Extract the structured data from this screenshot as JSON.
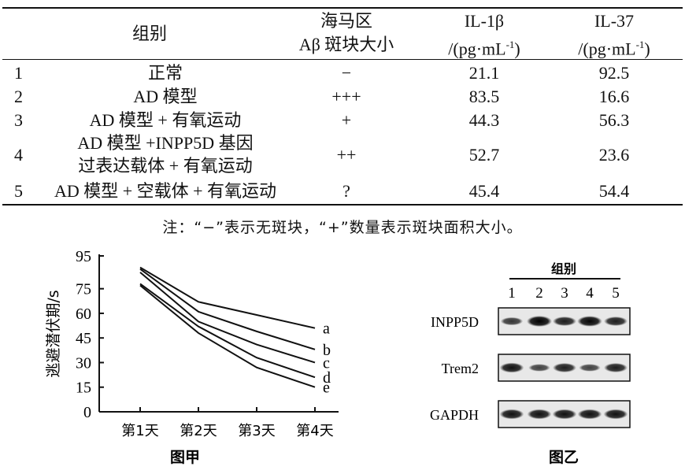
{
  "table": {
    "headers": {
      "group": "组别",
      "plaque_line1": "海马区",
      "plaque_line2": "Aβ 斑块大小",
      "il1b_line1": "IL-1β",
      "il1b_line2": "/(pg·mL",
      "il1b_exp": "-1",
      "il1b_close": ")",
      "il37_line1": "IL-37",
      "il37_line2": "/(pg·mL",
      "il37_exp": "-1",
      "il37_close": ")"
    },
    "rows": [
      {
        "num": "1",
        "group": "正常",
        "group2": "",
        "plaque": "−",
        "il1b": "21.1",
        "il37": "92.5"
      },
      {
        "num": "2",
        "group": "AD 模型",
        "group2": "",
        "plaque": "+++",
        "il1b": "83.5",
        "il37": "16.6"
      },
      {
        "num": "3",
        "group": "AD 模型 + 有氧运动",
        "group2": "",
        "plaque": "+",
        "il1b": "44.3",
        "il37": "56.3"
      },
      {
        "num": "4",
        "group": "AD 模型 +INPP5D 基因",
        "group2": "过表达载体 + 有氧运动",
        "plaque": "++",
        "il1b": "52.7",
        "il37": "23.6"
      },
      {
        "num": "5",
        "group": "AD 模型 + 空载体 + 有氧运动",
        "group2": "",
        "plaque": "?",
        "il1b": "45.4",
        "il37": "54.4"
      }
    ],
    "note": "注：“−”表示无斑块，“+”数量表示斑块面积大小。"
  },
  "chart_data": {
    "type": "line",
    "title": "图甲",
    "ylabel": "逃避潜伏期/s",
    "xlabel": "",
    "categories": [
      "第1天",
      "第2天",
      "第3天",
      "第4天"
    ],
    "yticks": [
      0,
      15,
      30,
      45,
      60,
      75,
      95
    ],
    "ylim": [
      0,
      95
    ],
    "series": [
      {
        "name": "a",
        "values": [
          88,
          67,
          59,
          51
        ]
      },
      {
        "name": "b",
        "values": [
          87,
          61,
          49,
          38
        ]
      },
      {
        "name": "c",
        "values": [
          85,
          55,
          41,
          30
        ]
      },
      {
        "name": "d",
        "values": [
          78,
          52,
          33,
          21
        ]
      },
      {
        "name": "e",
        "values": [
          77,
          48,
          27,
          15
        ]
      }
    ]
  },
  "blot": {
    "title": "图乙",
    "group_label": "组别",
    "lanes": [
      "1",
      "2",
      "3",
      "4",
      "5"
    ],
    "rows": [
      {
        "label": "INPP5D",
        "intensities": [
          0.55,
          1.0,
          0.75,
          0.95,
          0.75
        ]
      },
      {
        "label": "Trem2",
        "intensities": [
          0.85,
          0.45,
          0.75,
          0.45,
          0.75
        ]
      },
      {
        "label": "GAPDH",
        "intensities": [
          0.85,
          0.85,
          0.85,
          0.85,
          0.85
        ]
      }
    ]
  }
}
